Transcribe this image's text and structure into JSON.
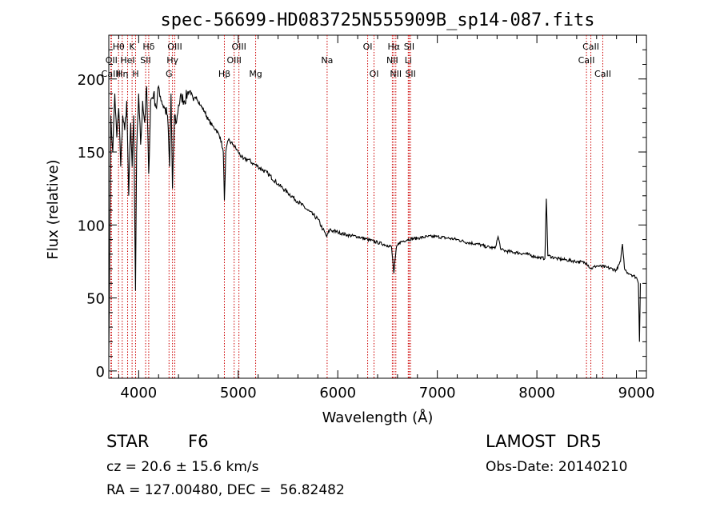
{
  "chart_data": {
    "type": "line",
    "title": "spec-56699-HD083725N555909B_sp14-087.fits",
    "xlabel": "Wavelength (Å)",
    "ylabel": "Flux (relative)",
    "xlim": [
      3700,
      9100
    ],
    "ylim": [
      -5,
      230
    ],
    "xticks": [
      4000,
      5000,
      6000,
      7000,
      8000,
      9000
    ],
    "yticks": [
      0,
      50,
      100,
      150,
      200
    ],
    "grid": false,
    "series": [
      {
        "x": [
          3700,
          3720,
          3740,
          3760,
          3780,
          3800,
          3820,
          3840,
          3860,
          3880,
          3900,
          3920,
          3935,
          3950,
          3968,
          3980,
          4000,
          4020,
          4040,
          4060,
          4080,
          4101,
          4120,
          4150,
          4180,
          4200,
          4230,
          4260,
          4290,
          4310,
          4325,
          4340,
          4360,
          4380,
          4400,
          4430,
          4460,
          4490,
          4520,
          4550,
          4580,
          4620,
          4660,
          4700,
          4740,
          4780,
          4820,
          4850,
          4861,
          4875,
          4900,
          4950,
          5000,
          5050,
          5100,
          5150,
          5200,
          5300,
          5400,
          5500,
          5600,
          5700,
          5800,
          5850,
          5890,
          5920,
          5950,
          6000,
          6100,
          6200,
          6300,
          6400,
          6500,
          6540,
          6563,
          6590,
          6620,
          6700,
          6800,
          6900,
          7000,
          7100,
          7200,
          7300,
          7400,
          7500,
          7580,
          7610,
          7640,
          7700,
          7800,
          7900,
          8000,
          8080,
          8095,
          8110,
          8200,
          8300,
          8400,
          8500,
          8540,
          8600,
          8700,
          8800,
          8840,
          8860,
          8880,
          8900,
          8950,
          9000,
          9020,
          9030,
          9040
        ],
        "y": [
          10,
          175,
          150,
          190,
          160,
          180,
          140,
          175,
          165,
          185,
          120,
          170,
          140,
          175,
          55,
          150,
          190,
          155,
          185,
          170,
          195,
          135,
          185,
          190,
          180,
          195,
          185,
          180,
          175,
          140,
          190,
          125,
          175,
          170,
          182,
          188,
          185,
          190,
          192,
          185,
          188,
          182,
          178,
          172,
          168,
          165,
          160,
          150,
          117,
          150,
          158,
          155,
          150,
          145,
          145,
          142,
          140,
          135,
          128,
          122,
          116,
          110,
          104,
          97,
          92,
          97,
          96,
          95,
          93,
          92,
          90,
          88,
          86,
          85,
          67,
          85,
          88,
          90,
          91,
          92,
          92,
          91,
          90,
          88,
          87,
          85,
          84,
          92,
          83,
          82,
          81,
          80,
          78,
          77,
          118,
          79,
          77,
          76,
          75,
          74,
          70,
          72,
          71,
          69,
          75,
          87,
          70,
          68,
          66,
          64,
          60,
          20,
          60
        ]
      }
    ],
    "spectral_lines": [
      {
        "label": "Hθ",
        "x": 3798,
        "row": 0
      },
      {
        "label": "K",
        "x": 3934,
        "row": 0
      },
      {
        "label": "Hδ",
        "x": 4101,
        "row": 0
      },
      {
        "label": "OIII",
        "x": 4363,
        "row": 0
      },
      {
        "label": "OIII",
        "x": 5007,
        "row": 0
      },
      {
        "label": "OI",
        "x": 6300,
        "row": 0
      },
      {
        "label": "Hα",
        "x": 6563,
        "row": 0
      },
      {
        "label": "SII",
        "x": 6717,
        "row": 0
      },
      {
        "label": "CaII",
        "x": 8542,
        "row": 0
      },
      {
        "label": "OII",
        "x": 3727,
        "row": 1
      },
      {
        "label": "HeI",
        "x": 3889,
        "row": 1
      },
      {
        "label": "SII",
        "x": 4070,
        "row": 1
      },
      {
        "label": "Hγ",
        "x": 4340,
        "row": 1
      },
      {
        "label": "OIII",
        "x": 4959,
        "row": 1
      },
      {
        "label": "Na",
        "x": 5893,
        "row": 1
      },
      {
        "label": "NII",
        "x": 6548,
        "row": 1
      },
      {
        "label": "Li",
        "x": 6708,
        "row": 1
      },
      {
        "label": "CaII",
        "x": 8498,
        "row": 1
      },
      {
        "label": "CaIII",
        "x": 3722,
        "row": 2
      },
      {
        "label": "Hη",
        "x": 3835,
        "row": 2
      },
      {
        "label": "H",
        "x": 3969,
        "row": 2
      },
      {
        "label": "G",
        "x": 4305,
        "row": 2
      },
      {
        "label": "Hβ",
        "x": 4861,
        "row": 2
      },
      {
        "label": "Mg",
        "x": 5175,
        "row": 2
      },
      {
        "label": "OI",
        "x": 6364,
        "row": 2
      },
      {
        "label": "NII",
        "x": 6583,
        "row": 2
      },
      {
        "label": "SII",
        "x": 6731,
        "row": 2
      },
      {
        "label": "CaII",
        "x": 8662,
        "row": 2
      }
    ],
    "line_marker_color": "#cc0000"
  },
  "info": {
    "object_class": "STAR",
    "subclass": "F6",
    "survey": "LAMOST  DR5",
    "redshift": "cz = 20.6 ± 15.6 km/s",
    "obs_date": "Obs-Date: 20140210",
    "coords": "RA = 127.00480, DEC =  56.82482"
  }
}
